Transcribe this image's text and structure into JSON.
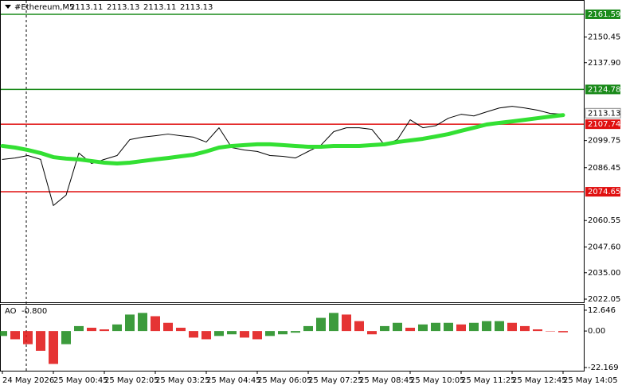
{
  "chart_data": [
    {
      "type": "line",
      "title": "#Ethereum,M5",
      "quote": [
        2113.11,
        2113.13,
        2113.11,
        2113.13
      ],
      "categories": [
        "24 May 2026",
        null,
        null,
        null,
        "25 May 00:45",
        null,
        null,
        null,
        "25 May 02:05",
        null,
        null,
        null,
        "25 May 03:25",
        null,
        null,
        null,
        "25 May 04:45",
        null,
        null,
        null,
        "25 May 06:05",
        null,
        null,
        null,
        "25 May 07:25",
        null,
        null,
        null,
        "25 May 08:45",
        null,
        null,
        null,
        "25 May 10:05",
        null,
        null,
        null,
        "25 May 11:25",
        null,
        null,
        null,
        "25 May 12:45",
        null,
        null,
        null,
        "25 May 14:05"
      ],
      "series": [
        {
          "color": "#000000",
          "values": [
            2090.5,
            2091.2,
            2092.4,
            2090.5,
            2067.9,
            2073.0,
            2093.6,
            2088.5,
            2090.5,
            2092.4,
            2100.2,
            2101.4,
            2102.1,
            2102.9,
            2102.1,
            2101.4,
            2099.0,
            2106.0,
            2096.3,
            2095.1,
            2094.4,
            2092.4,
            2092.0,
            2091.2,
            2094.4,
            2097.5,
            2104.1,
            2106.0,
            2106.0,
            2105.2,
            2097.5,
            2100.2,
            2109.9,
            2106.0,
            2107.0,
            2110.7,
            2112.6,
            2111.8,
            2113.8,
            2115.7,
            2116.5,
            2115.7,
            2114.6,
            2113.0,
            2112.6
          ]
        },
        {
          "color": "#33e033",
          "values": [
            2097.1,
            2096.3,
            2095.1,
            2093.6,
            2091.6,
            2090.9,
            2090.5,
            2089.7,
            2088.9,
            2088.5,
            2088.9,
            2089.7,
            2090.5,
            2091.2,
            2092.0,
            2092.8,
            2094.4,
            2096.3,
            2097.1,
            2097.5,
            2097.9,
            2097.9,
            2097.5,
            2097.1,
            2096.7,
            2096.7,
            2097.1,
            2097.1,
            2097.1,
            2097.5,
            2097.9,
            2099.0,
            2099.8,
            2100.6,
            2101.7,
            2102.9,
            2104.5,
            2106.0,
            2107.6,
            2108.4,
            2109.1,
            2109.9,
            2110.7,
            2111.5,
            2112.2
          ]
        }
      ],
      "levels": [
        {
          "value": 2161.59,
          "color": "#1a8a1a"
        },
        {
          "value": 2124.78,
          "color": "#1a8a1a"
        },
        {
          "value": 2107.74,
          "color": "#e01010"
        },
        {
          "value": 2074.65,
          "color": "#e01010"
        }
      ],
      "current_price": 2113.13,
      "ylim": [
        2020.5,
        2168.2
      ],
      "yticks": [
        2150.45,
        {
          "value": 2137.9,
          "label": "2137.90"
        },
        2099.75,
        2086.45,
        2060.55,
        {
          "value": 2047.6,
          "label": "2047.60"
        },
        {
          "value": 2035,
          "label": "2035.00"
        },
        2022.05
      ]
    },
    {
      "type": "bar",
      "title": "AO",
      "current": -0.8,
      "current_label": "-0.800",
      "up_color": "#1a8a1a",
      "down_color": "#e01010",
      "values": [
        -3,
        -5,
        -8,
        -12,
        -20,
        -8,
        3,
        2,
        1,
        4,
        10,
        11,
        9,
        5,
        2,
        -4,
        -5,
        -3,
        -2,
        -4,
        -5,
        -3,
        -2,
        -1,
        3,
        8,
        11,
        10,
        6,
        -2,
        3,
        5,
        2,
        4,
        5,
        5,
        4,
        5,
        6,
        6,
        5,
        3,
        1,
        0,
        -0.8
      ],
      "ylim": [
        -24.1,
        16.0
      ],
      "yticks": [
        12.646,
        {
          "value": 0,
          "label": "0.00"
        },
        -22.169
      ]
    }
  ]
}
